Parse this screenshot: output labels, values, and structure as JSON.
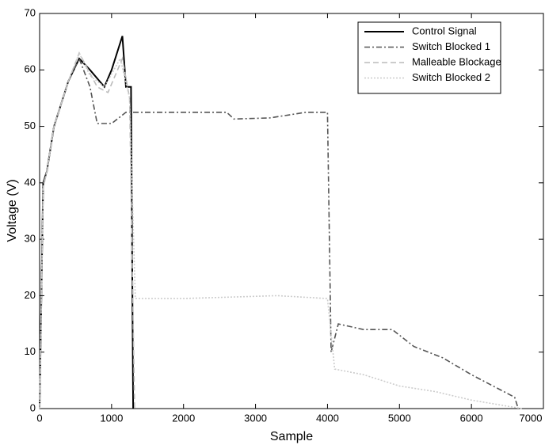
{
  "chart_data": {
    "type": "line",
    "xlabel": "Sample",
    "ylabel": "Voltage (V)",
    "xlim": [
      0,
      7000
    ],
    "ylim": [
      0,
      70
    ],
    "xticks": [
      0,
      1000,
      2000,
      3000,
      4000,
      5000,
      6000,
      7000
    ],
    "yticks": [
      0,
      10,
      20,
      30,
      40,
      50,
      60,
      70
    ],
    "grid": false,
    "legend": "upper right",
    "series": [
      {
        "name": "Control Signal",
        "color": "#000000",
        "dash": "solid",
        "x": [
          0,
          50,
          100,
          200,
          400,
          550,
          700,
          900,
          1000,
          1150,
          1200,
          1270,
          1300
        ],
        "values": [
          0,
          40,
          42,
          50,
          58,
          62,
          60,
          57,
          60,
          66,
          57,
          57,
          0
        ]
      },
      {
        "name": "Switch Blocked 1",
        "color": "#555555",
        "dash": "dashdot",
        "x": [
          0,
          50,
          100,
          200,
          400,
          550,
          700,
          800,
          1000,
          1200,
          2000,
          2600,
          2700,
          3200,
          3700,
          4000,
          4050,
          4150,
          4500,
          4900,
          5200,
          5600,
          6000,
          6600,
          6650
        ],
        "values": [
          0,
          40,
          42,
          50,
          58,
          62,
          57,
          50.5,
          50.5,
          52.5,
          52.5,
          52.5,
          51.3,
          51.5,
          52.5,
          52.5,
          10,
          15,
          14,
          14,
          11,
          9,
          6,
          2,
          0
        ]
      },
      {
        "name": "Malleable Blockage",
        "color": "#bbbbbb",
        "dash": "dashed",
        "x": [
          0,
          50,
          100,
          200,
          400,
          550,
          800,
          950,
          1150,
          1250,
          1320
        ],
        "values": [
          0,
          39,
          42,
          50,
          58,
          63,
          57,
          56,
          62,
          55,
          0
        ]
      },
      {
        "name": "Switch Blocked 2",
        "color": "#cccccc",
        "dash": "dotted",
        "x": [
          0,
          50,
          100,
          200,
          400,
          550,
          700,
          900,
          1120,
          1250,
          1330,
          2000,
          3300,
          4000,
          4100,
          4500,
          5000,
          5500,
          6000,
          6700
        ],
        "values": [
          0,
          39,
          42,
          50,
          58,
          63,
          59,
          57,
          62,
          55,
          19.5,
          19.5,
          20,
          19.5,
          7,
          6,
          4,
          3,
          1.5,
          0
        ]
      }
    ]
  }
}
